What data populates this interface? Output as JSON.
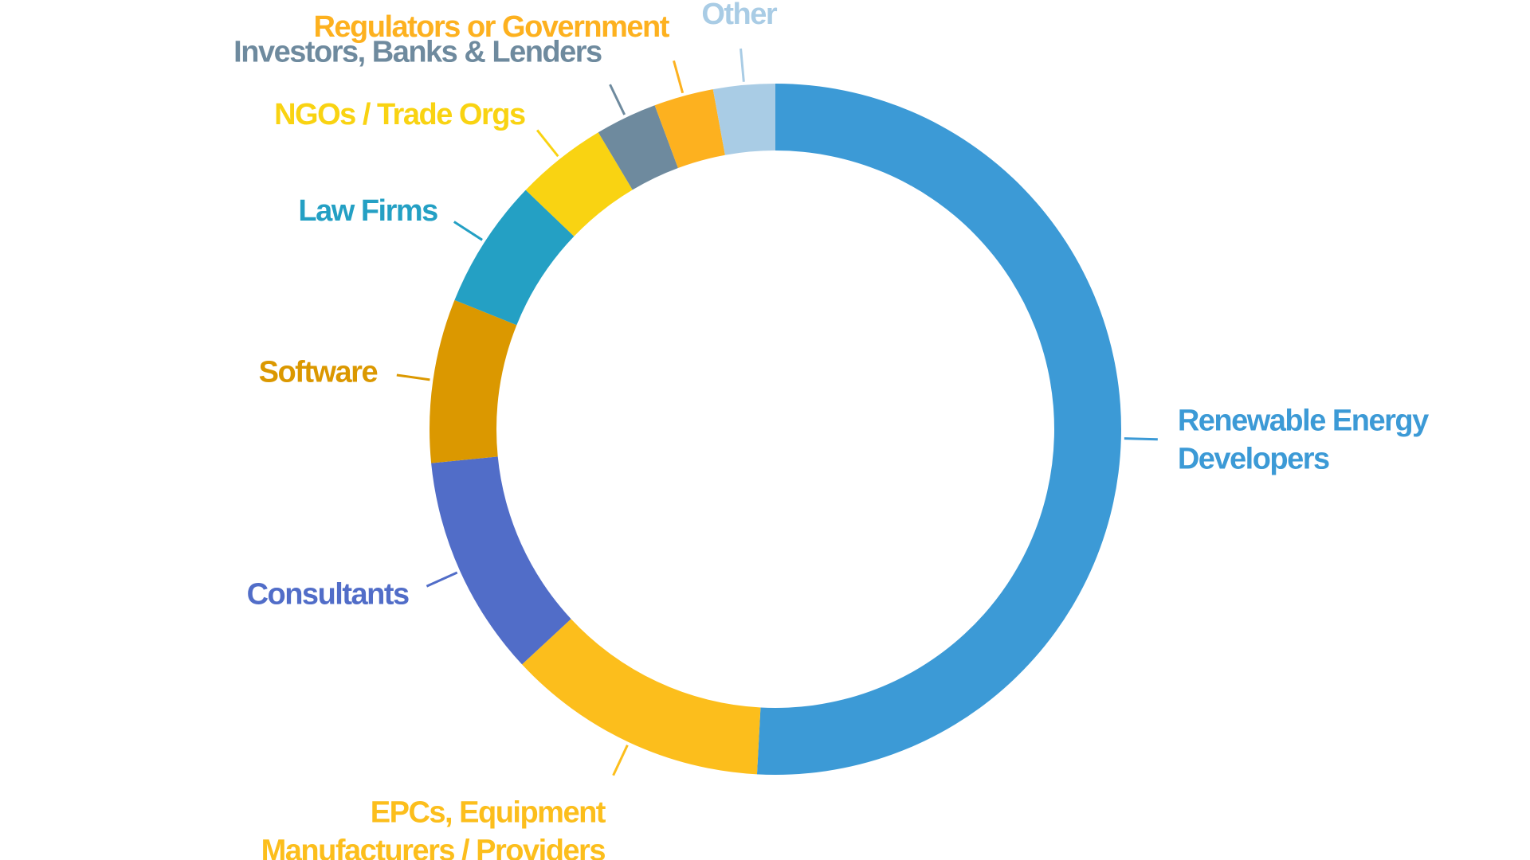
{
  "chart_data": {
    "type": "pie",
    "style": "donut",
    "title": "",
    "start_angle_deg": 0,
    "direction": "clockwise",
    "unit": "percent",
    "slices": [
      {
        "label": [
          "Renewable Energy",
          "Developers"
        ],
        "value": 51.1,
        "color": "#3C9AD6"
      },
      {
        "label": [
          "EPCs, Equipment",
          "Manufacturers / Providers"
        ],
        "value": 12.3,
        "color": "#FCBE1C"
      },
      {
        "label": [
          "Consultants"
        ],
        "value": 10.4,
        "color": "#516DC8"
      },
      {
        "label": [
          "Software"
        ],
        "value": 7.7,
        "color": "#DB9800"
      },
      {
        "label": [
          "Law Firms"
        ],
        "value": 6.1,
        "color": "#24A0C4"
      },
      {
        "label": [
          "NGOs / Trade Orgs"
        ],
        "value": 4.3,
        "color": "#F9D312"
      },
      {
        "label": [
          "Investors, Banks & Lenders"
        ],
        "value": 2.9,
        "color": "#6E8A9E"
      },
      {
        "label": [
          "Regulators or Government"
        ],
        "value": 2.8,
        "color": "#FDB11F"
      },
      {
        "label": [
          "Other"
        ],
        "value": 2.9,
        "color": "#A9CCE5"
      }
    ]
  }
}
